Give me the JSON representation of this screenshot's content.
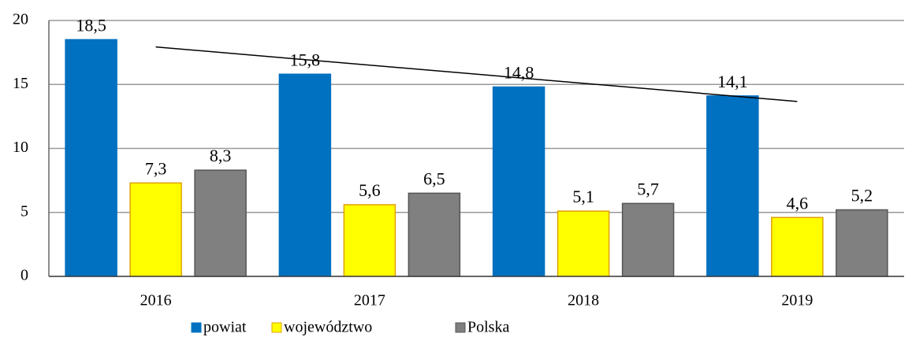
{
  "chart_data": {
    "type": "bar",
    "categories": [
      "2016",
      "2017",
      "2018",
      "2019"
    ],
    "series": [
      {
        "name": "powiat",
        "color": "#0070c0",
        "values": [
          18.5,
          15.8,
          14.8,
          14.1
        ],
        "value_labels": [
          "18,5",
          "15,8",
          "14,8",
          "14,1"
        ]
      },
      {
        "name": "województwo",
        "color": "#ffff00",
        "values": [
          7.3,
          5.6,
          5.1,
          4.6
        ],
        "value_labels": [
          "7,3",
          "5,6",
          "5,1",
          "4,6"
        ]
      },
      {
        "name": "Polska",
        "color": "#808080",
        "values": [
          8.3,
          6.5,
          5.7,
          5.2
        ],
        "value_labels": [
          "8,3",
          "6,5",
          "5,7",
          "5,2"
        ]
      }
    ],
    "ylim": [
      0,
      20
    ],
    "yticks": [
      0,
      5,
      10,
      15,
      20
    ],
    "grid": true,
    "trendline_series": 0,
    "legend": "bottom"
  }
}
